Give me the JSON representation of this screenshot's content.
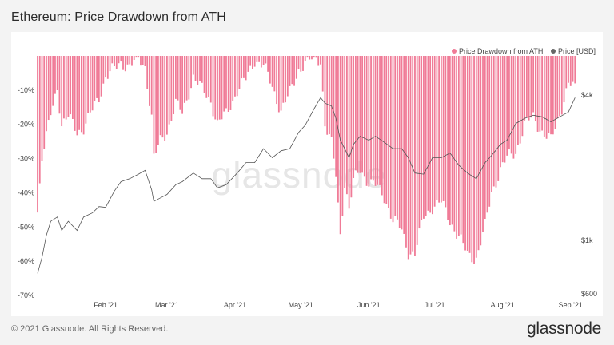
{
  "header": {
    "title": "Ethereum: Price Drawdown from ATH"
  },
  "footer": {
    "copyright": "© 2021 Glassnode. All Rights Reserved.",
    "brand": "glassnode"
  },
  "watermark": "glassnode",
  "colors": {
    "drawdown": "#f07b97",
    "price": "#555555",
    "background": "#ffffff"
  },
  "chart_data": {
    "type": "bar+line",
    "x_ticks": [
      "Feb '21",
      "Mar '21",
      "Apr '21",
      "May '21",
      "Jun '21",
      "Jul '21",
      "Aug '21",
      "Sep '21"
    ],
    "y_left_ticks": [
      "-10%",
      "-20%",
      "-30%",
      "-40%",
      "-50%",
      "-60%",
      "-70%"
    ],
    "y_right_ticks": [
      "$4k",
      "$1k",
      "$600"
    ],
    "y_left_range": [
      -70,
      0
    ],
    "y_right_scale": "log",
    "legend": {
      "placement": "top-right",
      "items": [
        "Price Drawdown from ATH",
        "Price [USD]"
      ]
    },
    "series": [
      {
        "name": "Price Drawdown from ATH",
        "type": "bar",
        "dates": [
          "2021-01-01",
          "2021-01-03",
          "2021-01-05",
          "2021-01-07",
          "2021-01-10",
          "2021-01-12",
          "2021-01-15",
          "2021-01-19",
          "2021-01-22",
          "2021-01-26",
          "2021-01-29",
          "2021-02-01",
          "2021-02-05",
          "2021-02-08",
          "2021-02-12",
          "2021-02-16",
          "2021-02-19",
          "2021-02-22",
          "2021-02-23",
          "2021-02-26",
          "2021-03-01",
          "2021-03-05",
          "2021-03-08",
          "2021-03-13",
          "2021-03-17",
          "2021-03-21",
          "2021-03-24",
          "2021-03-28",
          "2021-04-02",
          "2021-04-06",
          "2021-04-10",
          "2021-04-14",
          "2021-04-18",
          "2021-04-22",
          "2021-04-26",
          "2021-04-30",
          "2021-05-03",
          "2021-05-07",
          "2021-05-10",
          "2021-05-12",
          "2021-05-15",
          "2021-05-17",
          "2021-05-19",
          "2021-05-21",
          "2021-05-23",
          "2021-05-25",
          "2021-05-28",
          "2021-06-01",
          "2021-06-04",
          "2021-06-08",
          "2021-06-12",
          "2021-06-16",
          "2021-06-19",
          "2021-06-22",
          "2021-06-26",
          "2021-06-30",
          "2021-07-04",
          "2021-07-08",
          "2021-07-12",
          "2021-07-16",
          "2021-07-20",
          "2021-07-24",
          "2021-07-27",
          "2021-07-31",
          "2021-08-03",
          "2021-08-07",
          "2021-08-11",
          "2021-08-15",
          "2021-08-19",
          "2021-08-23",
          "2021-08-27",
          "2021-08-31",
          "2021-09-03"
        ],
        "values": [
          -45,
          -30,
          -24,
          -17,
          -9,
          -20,
          -18,
          -22,
          -21,
          -16,
          -12,
          -6,
          -4,
          -2,
          -3,
          -1,
          -3,
          -18,
          -30,
          -25,
          -22,
          -14,
          -17,
          -6,
          -10,
          -13,
          -20,
          -17,
          -10,
          -7,
          -1,
          -3,
          -9,
          -16,
          -11,
          -4,
          -2,
          -1,
          -1,
          -20,
          -26,
          -35,
          -52,
          -37,
          -45,
          -37,
          -33,
          -37,
          -38,
          -41,
          -48,
          -51,
          -57,
          -58,
          -47,
          -44,
          -43,
          -48,
          -53,
          -58,
          -59,
          -50,
          -40,
          -33,
          -30,
          -28,
          -20,
          -18,
          -22,
          -25,
          -17,
          -8,
          -10
        ]
      },
      {
        "name": "Price [USD]",
        "type": "line",
        "dates": [
          "2021-01-01",
          "2021-01-03",
          "2021-01-05",
          "2021-01-07",
          "2021-01-10",
          "2021-01-12",
          "2021-01-15",
          "2021-01-19",
          "2021-01-22",
          "2021-01-26",
          "2021-01-29",
          "2021-02-01",
          "2021-02-05",
          "2021-02-08",
          "2021-02-12",
          "2021-02-16",
          "2021-02-19",
          "2021-02-22",
          "2021-02-23",
          "2021-02-26",
          "2021-03-01",
          "2021-03-05",
          "2021-03-08",
          "2021-03-13",
          "2021-03-17",
          "2021-03-21",
          "2021-03-24",
          "2021-03-28",
          "2021-04-02",
          "2021-04-06",
          "2021-04-10",
          "2021-04-14",
          "2021-04-18",
          "2021-04-22",
          "2021-04-26",
          "2021-04-30",
          "2021-05-03",
          "2021-05-07",
          "2021-05-10",
          "2021-05-12",
          "2021-05-15",
          "2021-05-17",
          "2021-05-19",
          "2021-05-21",
          "2021-05-23",
          "2021-05-25",
          "2021-05-28",
          "2021-06-01",
          "2021-06-04",
          "2021-06-08",
          "2021-06-12",
          "2021-06-16",
          "2021-06-19",
          "2021-06-22",
          "2021-06-26",
          "2021-06-30",
          "2021-07-04",
          "2021-07-08",
          "2021-07-12",
          "2021-07-16",
          "2021-07-20",
          "2021-07-24",
          "2021-07-27",
          "2021-07-31",
          "2021-08-03",
          "2021-08-07",
          "2021-08-11",
          "2021-08-15",
          "2021-08-19",
          "2021-08-23",
          "2021-08-27",
          "2021-08-31",
          "2021-09-03"
        ],
        "values": [
          730,
          850,
          1050,
          1200,
          1250,
          1100,
          1200,
          1100,
          1250,
          1300,
          1380,
          1370,
          1600,
          1750,
          1800,
          1880,
          1950,
          1620,
          1450,
          1500,
          1550,
          1700,
          1750,
          1900,
          1800,
          1800,
          1650,
          1700,
          1900,
          2100,
          2100,
          2400,
          2200,
          2350,
          2400,
          2800,
          3000,
          3500,
          3900,
          3700,
          3600,
          3200,
          2600,
          2400,
          2200,
          2500,
          2700,
          2600,
          2700,
          2550,
          2400,
          2400,
          2200,
          1900,
          1880,
          2200,
          2200,
          2300,
          2050,
          1900,
          1800,
          2100,
          2250,
          2500,
          2600,
          3050,
          3200,
          3300,
          3250,
          3100,
          3250,
          3400,
          3900
        ]
      }
    ]
  }
}
